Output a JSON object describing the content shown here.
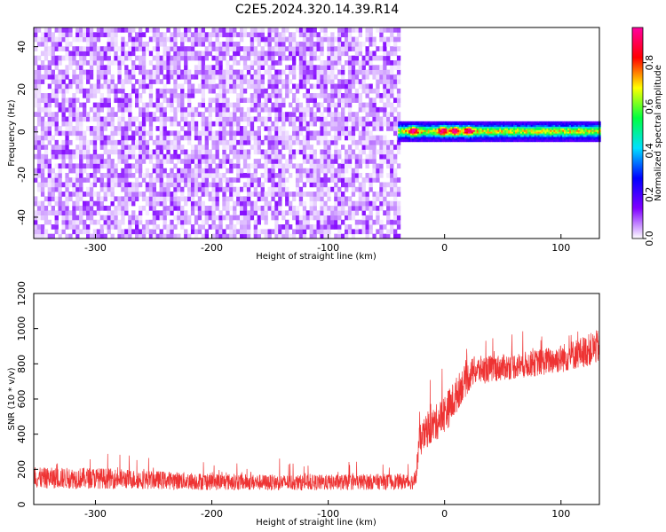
{
  "title": "C2E5.2024.320.14.39.R14",
  "chart_data": [
    {
      "type": "heatmap",
      "xlabel": "Height of straight line (km)",
      "ylabel": "Frequency (Hz)",
      "xlim": [
        -353,
        133
      ],
      "ylim": [
        -50,
        49
      ],
      "xticks": [
        -300,
        -200,
        -100,
        0,
        100
      ],
      "yticks": [
        -40,
        -20,
        0,
        20,
        40
      ],
      "colorbar": {
        "label": "Normalized spectral amplitude",
        "range": [
          0,
          0.96
        ],
        "ticks": [
          0.0,
          0.2,
          0.4,
          0.6,
          0.8
        ],
        "colors": [
          "#ffffff",
          "#8000ff",
          "#0000ff",
          "#00e0ff",
          "#00ff40",
          "#ffff00",
          "#ff0000",
          "#ff00a0"
        ]
      },
      "regions": [
        {
          "name": "noise",
          "x": [
            -353,
            -40
          ],
          "y": [
            -50,
            49
          ],
          "amplitude": [
            0.0,
            0.15
          ]
        },
        {
          "name": "signal band",
          "x": [
            -40,
            133
          ],
          "center_frequency": 0,
          "half_width": 3,
          "amplitude": [
            0.3,
            0.96
          ]
        }
      ],
      "peaks": [
        {
          "x": -27,
          "y": 0
        },
        {
          "x": -2,
          "y": 0
        },
        {
          "x": 8,
          "y": 0
        },
        {
          "x": 20,
          "y": 0
        }
      ],
      "grid": false
    },
    {
      "type": "line",
      "xlabel": "Height of straight line (km)",
      "ylabel": "SNR (10 * v/v)",
      "xlim": [
        -353,
        133
      ],
      "ylim": [
        0,
        1200
      ],
      "xticks": [
        -300,
        -200,
        -100,
        0,
        100
      ],
      "yticks": [
        0,
        200,
        400,
        600,
        800,
        1000,
        1200
      ],
      "color": "#ee3333",
      "series_profile": {
        "x": [
          -353,
          -300,
          -250,
          -200,
          -150,
          -100,
          -50,
          -25,
          -22,
          -15,
          -5,
          5,
          15,
          25,
          50,
          75,
          100,
          120,
          133
        ],
        "y": [
          150,
          150,
          140,
          130,
          125,
          125,
          130,
          130,
          350,
          420,
          480,
          560,
          680,
          760,
          780,
          800,
          830,
          870,
          900
        ],
        "spread": [
          80,
          80,
          70,
          65,
          60,
          60,
          60,
          60,
          120,
          130,
          140,
          150,
          130,
          110,
          100,
          100,
          110,
          120,
          130
        ]
      },
      "grid": false
    }
  ]
}
